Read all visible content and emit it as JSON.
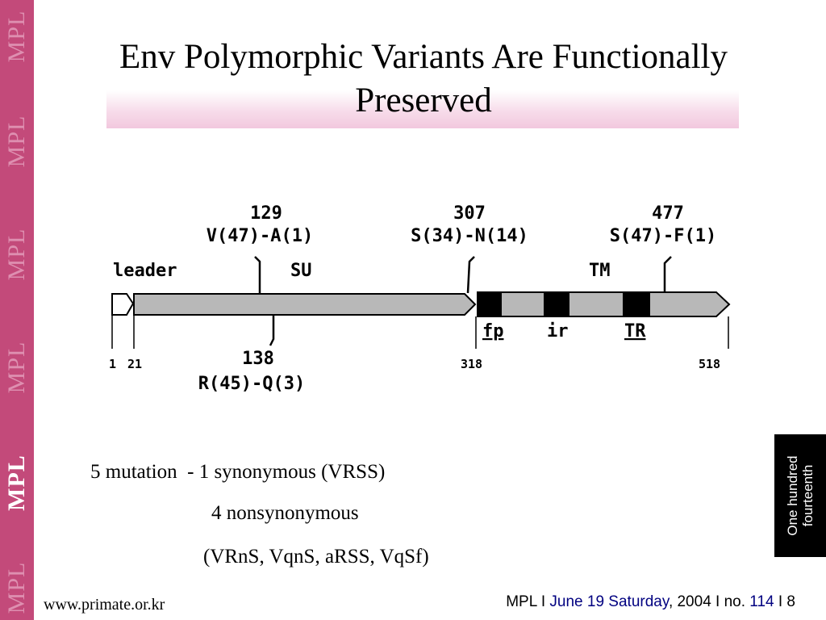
{
  "brand": {
    "strip_text": "MPL",
    "strip_color": "#c34a7a"
  },
  "title": {
    "line1": "Env Polymorphic Variants Are Functionally",
    "line2": "Preserved"
  },
  "diagram": {
    "domains": {
      "leader": "leader",
      "su": "SU",
      "tm": "TM"
    },
    "subdomains": {
      "fp": "fp",
      "ir": "ir",
      "tr": "TR"
    },
    "positions": [
      "1",
      "21",
      "318",
      "518"
    ],
    "variants": [
      {
        "position": "129",
        "change": "V(47)-A(1)"
      },
      {
        "position": "307",
        "change": "S(34)-N(14)"
      },
      {
        "position": "477",
        "change": "S(47)-F(1)"
      },
      {
        "position": "138",
        "change": "R(45)-Q(3)"
      }
    ]
  },
  "notes": {
    "line1": "5 mutation  - 1 synonymous (VRSS)",
    "line2": "4 nonsynonymous",
    "line3": "(VRnS, VqnS, aRSS, VqSf)"
  },
  "side_box": {
    "line1": "One hundred",
    "line2": "fourteenth"
  },
  "footer": {
    "url": "www.primate.or.kr",
    "org": "MPL",
    "sep1": " I ",
    "date_part": "June 19  Saturday",
    "year": ", 2004",
    "sep2": " I no. ",
    "number": "114",
    "sep3": " I 8"
  }
}
